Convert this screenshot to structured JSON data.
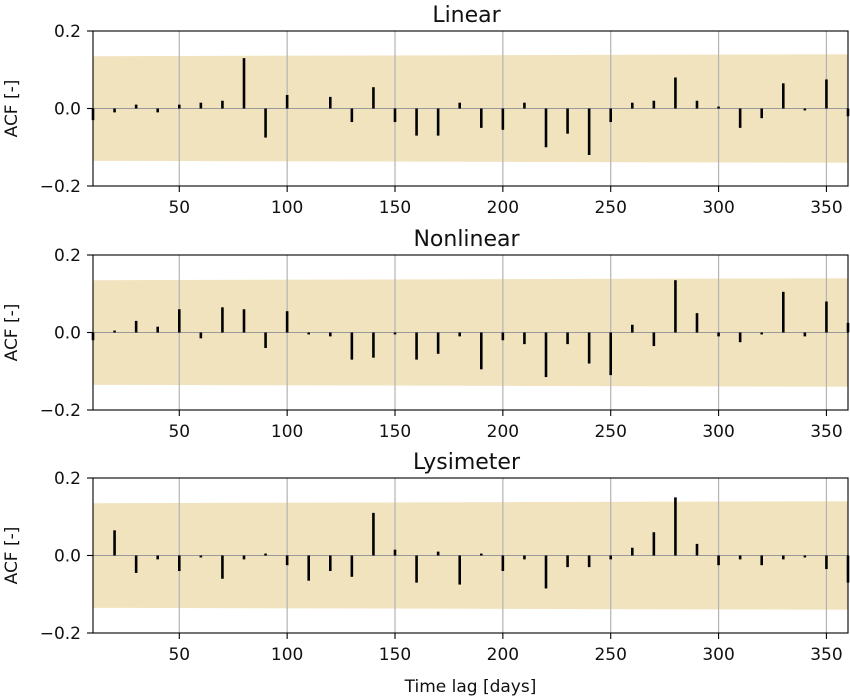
{
  "chart_data": [
    {
      "type": "bar",
      "title": "Linear",
      "ylabel": "ACF [-]",
      "xlabel": "",
      "xlim": [
        10,
        360
      ],
      "ylim": [
        -0.2,
        0.2
      ],
      "xticks": [
        50,
        100,
        150,
        200,
        250,
        300,
        350
      ],
      "yticks": [
        "−0.2",
        "0.0",
        "0.2"
      ],
      "yticks_values": [
        -0.2,
        0.0,
        0.2
      ],
      "grid": "vertical",
      "confidence_band": {
        "color": "#f2e3bf",
        "start": [
          10,
          -0.135,
          0.135
        ],
        "end": [
          360,
          -0.14,
          0.14
        ]
      },
      "x": [
        10,
        20,
        30,
        40,
        50,
        60,
        70,
        80,
        90,
        100,
        110,
        120,
        130,
        140,
        150,
        160,
        170,
        180,
        190,
        200,
        210,
        220,
        230,
        240,
        250,
        260,
        270,
        280,
        290,
        300,
        310,
        320,
        330,
        340,
        350,
        360
      ],
      "values": [
        -0.03,
        -0.01,
        0.01,
        -0.01,
        0.01,
        0.015,
        0.02,
        0.13,
        -0.075,
        0.035,
        0.0,
        0.03,
        -0.035,
        0.055,
        -0.035,
        -0.07,
        -0.07,
        0.015,
        -0.05,
        -0.055,
        0.015,
        -0.1,
        -0.065,
        -0.12,
        -0.035,
        0.015,
        0.02,
        0.08,
        0.02,
        0.005,
        -0.05,
        -0.025,
        0.065,
        -0.005,
        0.075,
        -0.02
      ]
    },
    {
      "type": "bar",
      "title": "Nonlinear",
      "ylabel": "ACF [-]",
      "xlabel": "",
      "xlim": [
        10,
        360
      ],
      "ylim": [
        -0.2,
        0.2
      ],
      "xticks": [
        50,
        100,
        150,
        200,
        250,
        300,
        350
      ],
      "yticks": [
        "−0.2",
        "0.0",
        "0.2"
      ],
      "yticks_values": [
        -0.2,
        0.0,
        0.2
      ],
      "grid": "vertical",
      "confidence_band": {
        "color": "#f2e3bf",
        "start": [
          10,
          -0.135,
          0.135
        ],
        "end": [
          360,
          -0.14,
          0.14
        ]
      },
      "x": [
        10,
        20,
        30,
        40,
        50,
        60,
        70,
        80,
        90,
        100,
        110,
        120,
        130,
        140,
        150,
        160,
        170,
        180,
        190,
        200,
        210,
        220,
        230,
        240,
        250,
        260,
        270,
        280,
        290,
        300,
        310,
        320,
        330,
        340,
        350,
        360
      ],
      "values": [
        -0.02,
        0.005,
        0.03,
        0.015,
        0.06,
        -0.015,
        0.065,
        0.06,
        -0.04,
        0.055,
        -0.005,
        -0.01,
        -0.07,
        -0.065,
        -0.005,
        -0.07,
        -0.055,
        -0.01,
        -0.095,
        -0.02,
        -0.03,
        -0.115,
        -0.03,
        -0.08,
        -0.11,
        0.02,
        -0.035,
        0.135,
        0.05,
        -0.01,
        -0.025,
        -0.005,
        0.105,
        -0.01,
        0.08,
        0.025
      ]
    },
    {
      "type": "bar",
      "title": "Lysimeter",
      "ylabel": "ACF [-]",
      "xlabel": "Time lag [days]",
      "xlim": [
        10,
        360
      ],
      "ylim": [
        -0.2,
        0.2
      ],
      "xticks": [
        50,
        100,
        150,
        200,
        250,
        300,
        350
      ],
      "yticks": [
        "−0.2",
        "0.0",
        "0.2"
      ],
      "yticks_values": [
        -0.2,
        0.0,
        0.2
      ],
      "grid": "vertical",
      "confidence_band": {
        "color": "#f2e3bf",
        "start": [
          10,
          -0.135,
          0.135
        ],
        "end": [
          360,
          -0.14,
          0.14
        ]
      },
      "x": [
        10,
        20,
        30,
        40,
        50,
        60,
        70,
        80,
        90,
        100,
        110,
        120,
        130,
        140,
        150,
        160,
        170,
        180,
        190,
        200,
        210,
        220,
        230,
        240,
        250,
        260,
        270,
        280,
        290,
        300,
        310,
        320,
        330,
        340,
        350,
        360
      ],
      "values": [
        0.0,
        0.065,
        -0.045,
        -0.01,
        -0.04,
        -0.005,
        -0.06,
        -0.01,
        0.005,
        -0.025,
        -0.065,
        -0.04,
        -0.055,
        0.11,
        0.015,
        -0.07,
        0.01,
        -0.075,
        0.005,
        -0.04,
        -0.01,
        -0.085,
        -0.03,
        -0.03,
        -0.01,
        0.02,
        0.06,
        0.15,
        0.03,
        -0.025,
        -0.01,
        -0.025,
        -0.01,
        -0.005,
        -0.035,
        -0.07
      ]
    }
  ]
}
